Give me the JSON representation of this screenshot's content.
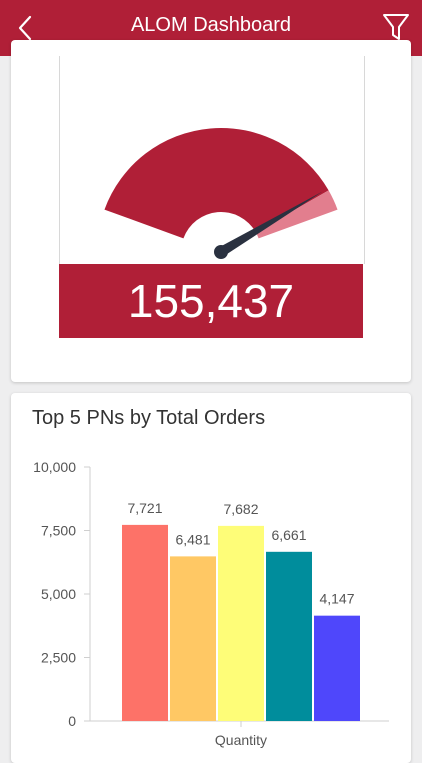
{
  "header": {
    "title": "ALOM Dashboard",
    "back_icon": "chevron-left-icon",
    "filter_icon": "filter-icon"
  },
  "kpi": {
    "value_label": "155,437",
    "gauge_fill_fraction": 0.93,
    "colors": {
      "fill": "#b01f37",
      "target_band": "#e27e8e",
      "needle": "#2a3140"
    }
  },
  "chart_data": {
    "type": "bar",
    "title": "Top 5 PNs by Total Orders",
    "xlabel": "Quantity",
    "ylabel": "",
    "ylim": [
      0,
      10000
    ],
    "yticks": [
      "0",
      "2,500",
      "5,000",
      "7,500",
      "10,000"
    ],
    "categories": [
      "Quantity"
    ],
    "series": [
      {
        "values": [
          7721
        ],
        "label": "7,721",
        "color": "#fd7268"
      },
      {
        "values": [
          6481
        ],
        "label": "6,481",
        "color": "#ffc864"
      },
      {
        "values": [
          7682
        ],
        "label": "7,682",
        "color": "#fefd78"
      },
      {
        "values": [
          6661
        ],
        "label": "6,661",
        "color": "#008d9c"
      },
      {
        "values": [
          4147
        ],
        "label": "4,147",
        "color": "#4f47fb"
      }
    ],
    "legend": "none",
    "grid": false
  }
}
